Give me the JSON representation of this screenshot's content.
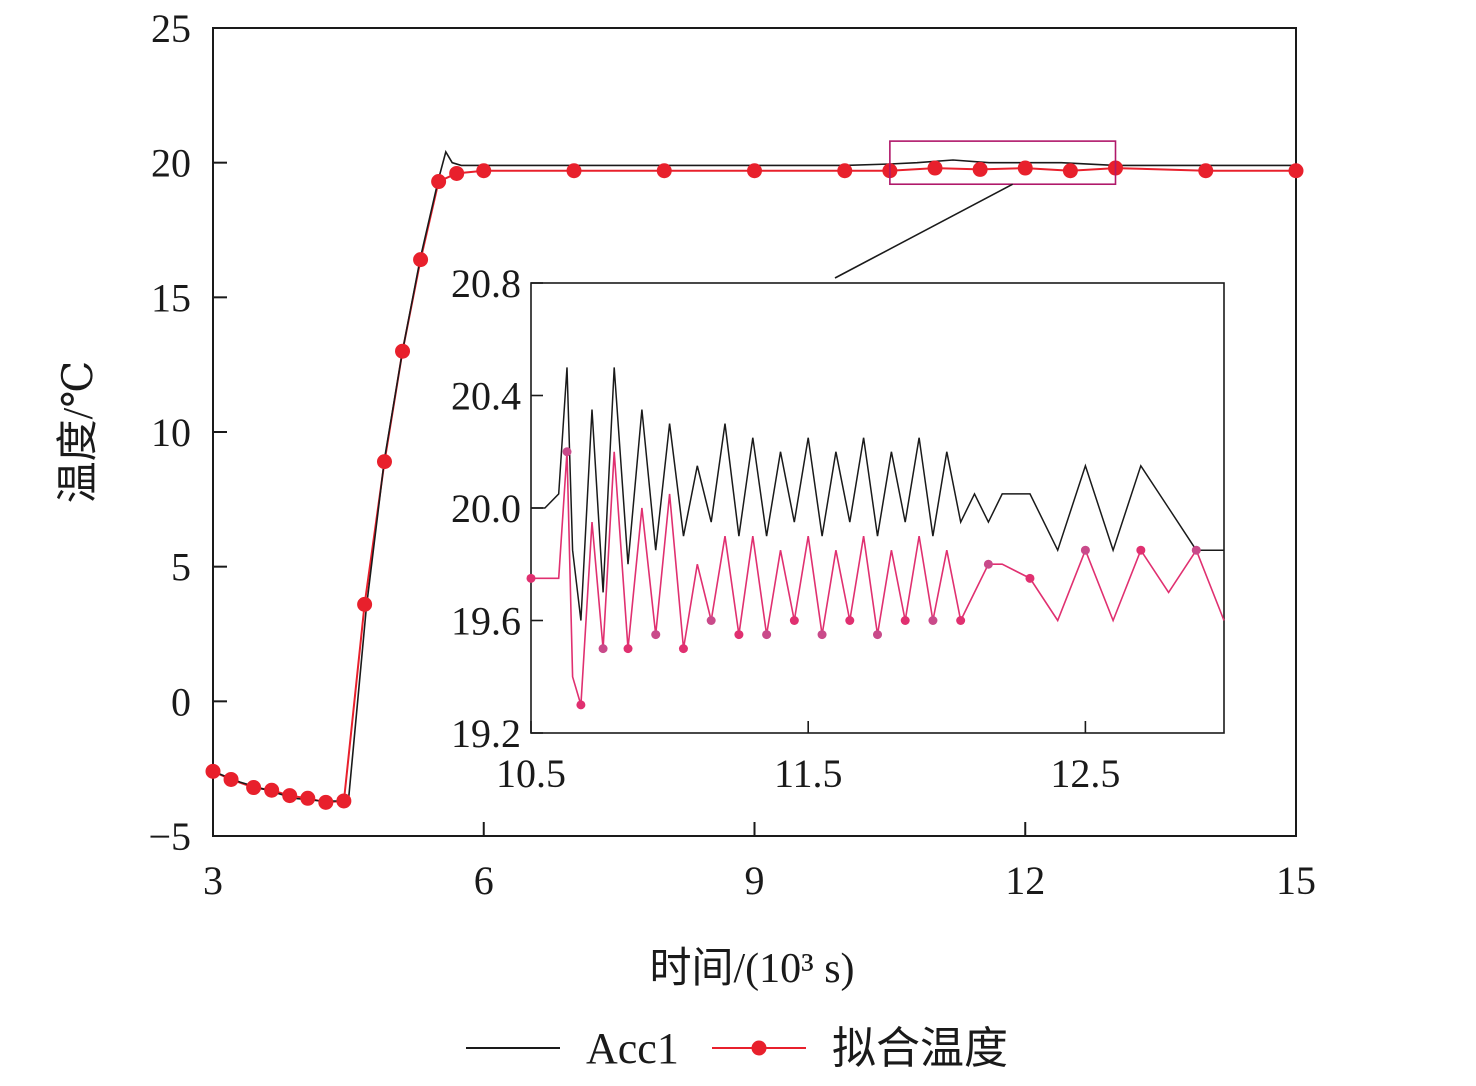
{
  "chart_data": {
    "type": "line",
    "xlabel": "时间/(10³ s)",
    "ylabel": "温度/℃",
    "xlim": [
      3,
      15
    ],
    "ylim": [
      -5,
      25
    ],
    "xticks": [
      "3",
      "6",
      "9",
      "12",
      "15"
    ],
    "yticks": [
      "−5",
      "0",
      "5",
      "10",
      "15",
      "20",
      "25"
    ],
    "grid": false,
    "legend_position": "bottom",
    "colors": {
      "acc1": "#1a1a1a",
      "fit": "#e8202c",
      "inset_fit": "#e03070",
      "marker_alt": "#c94a8a"
    },
    "series": [
      {
        "name": "Acc1",
        "x": [
          3.0,
          3.3,
          3.6,
          3.9,
          4.2,
          4.5,
          4.7,
          4.9,
          5.1,
          5.3,
          5.5,
          5.58,
          5.65,
          5.75,
          6.0,
          7.0,
          8.0,
          9.0,
          10.0,
          10.5,
          10.8,
          11.2,
          11.6,
          12.0,
          12.4,
          13.0,
          14.0,
          15.0
        ],
        "y": [
          -2.6,
          -3.0,
          -3.3,
          -3.6,
          -3.7,
          -3.7,
          3.5,
          9.0,
          13.0,
          16.5,
          19.4,
          20.4,
          20.0,
          19.9,
          19.9,
          19.9,
          19.9,
          19.9,
          19.9,
          19.95,
          20.0,
          20.1,
          20.0,
          20.0,
          20.0,
          19.9,
          19.9,
          19.9
        ]
      },
      {
        "name": "拟合温度",
        "x": [
          3.0,
          3.2,
          3.45,
          3.65,
          3.85,
          4.05,
          4.25,
          4.45,
          4.68,
          4.9,
          5.1,
          5.3,
          5.5,
          5.7,
          6.0,
          7.0,
          8.0,
          9.0,
          10.0,
          10.5,
          11.0,
          11.5,
          12.0,
          12.5,
          13.0,
          14.0,
          15.0
        ],
        "y": [
          -2.6,
          -2.9,
          -3.2,
          -3.3,
          -3.5,
          -3.6,
          -3.75,
          -3.7,
          3.6,
          8.9,
          13.0,
          16.4,
          19.3,
          19.6,
          19.7,
          19.7,
          19.7,
          19.7,
          19.7,
          19.7,
          19.8,
          19.75,
          19.8,
          19.7,
          19.8,
          19.7,
          19.7
        ]
      }
    ],
    "inset": {
      "type": "line",
      "xlim": [
        10.5,
        13.0
      ],
      "ylim": [
        19.2,
        20.8
      ],
      "xticks": [
        "10.5",
        "11.5",
        "12.5"
      ],
      "yticks": [
        "19.2",
        "19.6",
        "20.0",
        "20.4",
        "20.8"
      ],
      "zoom_box": {
        "x": [
          10.5,
          13.0
        ],
        "y": [
          19.2,
          20.8
        ]
      },
      "series": [
        {
          "name": "Acc1",
          "x": [
            10.5,
            10.55,
            10.6,
            10.63,
            10.65,
            10.68,
            10.72,
            10.76,
            10.8,
            10.85,
            10.9,
            10.95,
            11.0,
            11.05,
            11.1,
            11.15,
            11.2,
            11.25,
            11.3,
            11.35,
            11.4,
            11.45,
            11.5,
            11.55,
            11.6,
            11.65,
            11.7,
            11.75,
            11.8,
            11.85,
            11.9,
            11.95,
            12.0,
            12.05,
            12.1,
            12.15,
            12.2,
            12.3,
            12.4,
            12.5,
            12.6,
            12.7,
            12.8,
            12.9,
            13.0
          ],
          "y": [
            20.0,
            20.0,
            20.05,
            20.5,
            19.85,
            19.6,
            20.35,
            19.7,
            20.5,
            19.8,
            20.35,
            19.85,
            20.3,
            19.9,
            20.15,
            19.95,
            20.3,
            19.9,
            20.25,
            19.9,
            20.2,
            19.95,
            20.25,
            19.9,
            20.2,
            19.95,
            20.25,
            19.9,
            20.2,
            19.95,
            20.25,
            19.9,
            20.2,
            19.95,
            20.05,
            19.95,
            20.05,
            20.05,
            19.85,
            20.15,
            19.85,
            20.15,
            20.0,
            19.85,
            19.85
          ]
        },
        {
          "name": "拟合温度",
          "x": [
            10.5,
            10.6,
            10.63,
            10.65,
            10.68,
            10.72,
            10.76,
            10.8,
            10.85,
            10.9,
            10.95,
            11.0,
            11.05,
            11.1,
            11.15,
            11.2,
            11.25,
            11.3,
            11.35,
            11.4,
            11.45,
            11.5,
            11.55,
            11.6,
            11.65,
            11.7,
            11.75,
            11.8,
            11.85,
            11.9,
            11.95,
            12.0,
            12.05,
            12.1,
            12.15,
            12.2,
            12.3,
            12.4,
            12.5,
            12.6,
            12.7,
            12.8,
            12.9,
            13.0
          ],
          "y": [
            19.75,
            19.75,
            20.2,
            19.4,
            19.3,
            19.95,
            19.5,
            20.2,
            19.5,
            20.0,
            19.55,
            20.05,
            19.5,
            19.8,
            19.6,
            19.9,
            19.55,
            19.9,
            19.55,
            19.85,
            19.6,
            19.9,
            19.55,
            19.85,
            19.6,
            19.9,
            19.55,
            19.85,
            19.6,
            19.9,
            19.6,
            19.85,
            19.6,
            19.7,
            19.8,
            19.8,
            19.75,
            19.6,
            19.85,
            19.6,
            19.85,
            19.7,
            19.85,
            19.6
          ]
        }
      ]
    }
  }
}
